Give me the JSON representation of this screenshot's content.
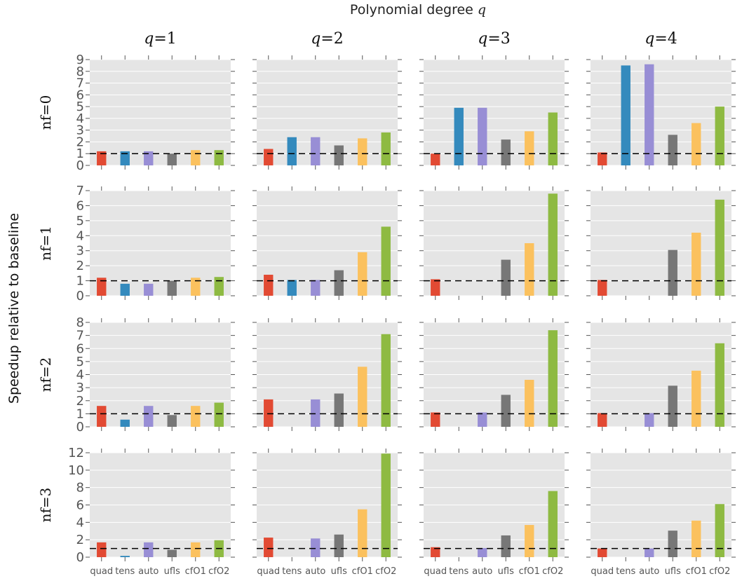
{
  "figure": {
    "suptitle_prefix": "Polynomial degree ",
    "suptitle_var": "q",
    "ylabel": "Speedup relative to baseline"
  },
  "colors": {
    "quad": "#e24a33",
    "tens": "#348abd",
    "auto": "#988ed5",
    "ufls": "#777777",
    "cfO1": "#fbc15e",
    "cfO2": "#8eba42",
    "panel_bg": "#e5e5e5",
    "grid": "#ffffff",
    "baseline": "#000000"
  },
  "chart_data": {
    "type": "bar",
    "categories": [
      "quad",
      "tens",
      "auto",
      "ufls",
      "cfO1",
      "cfO2"
    ],
    "baseline": 1,
    "columns": [
      {
        "var": "q",
        "value": "1"
      },
      {
        "var": "q",
        "value": "2"
      },
      {
        "var": "q",
        "value": "3"
      },
      {
        "var": "q",
        "value": "4"
      }
    ],
    "rows": [
      {
        "var": "nf",
        "value": "0",
        "ylim": [
          0,
          9
        ],
        "yticks": [
          0,
          1,
          2,
          3,
          4,
          5,
          6,
          7,
          8,
          9
        ]
      },
      {
        "var": "nf",
        "value": "1",
        "ylim": [
          0,
          7
        ],
        "yticks": [
          0,
          1,
          2,
          3,
          4,
          5,
          6,
          7
        ]
      },
      {
        "var": "nf",
        "value": "2",
        "ylim": [
          0,
          8
        ],
        "yticks": [
          0,
          1,
          2,
          3,
          4,
          5,
          6,
          7,
          8
        ]
      },
      {
        "var": "nf",
        "value": "3",
        "ylim": [
          0,
          12
        ],
        "yticks": [
          0,
          2,
          4,
          6,
          8,
          10,
          12
        ]
      }
    ],
    "values": [
      [
        [
          1.2,
          1.2,
          1.2,
          1.0,
          1.3,
          1.3
        ],
        [
          1.4,
          2.4,
          2.4,
          1.7,
          2.3,
          2.8
        ],
        [
          1.0,
          4.9,
          4.9,
          2.2,
          2.9,
          4.5
        ],
        [
          1.1,
          8.5,
          8.6,
          2.6,
          3.6,
          5.0
        ]
      ],
      [
        [
          1.2,
          0.8,
          0.8,
          1.0,
          1.2,
          1.25
        ],
        [
          1.4,
          1.05,
          1.05,
          1.7,
          2.9,
          4.6
        ],
        [
          1.1,
          null,
          null,
          2.4,
          3.5,
          6.8
        ],
        [
          1.05,
          null,
          null,
          3.05,
          4.2,
          6.4
        ]
      ],
      [
        [
          1.6,
          0.55,
          1.6,
          0.9,
          1.6,
          1.85
        ],
        [
          2.1,
          null,
          2.1,
          2.55,
          4.6,
          7.1
        ],
        [
          1.1,
          null,
          1.1,
          2.45,
          3.6,
          7.4
        ],
        [
          1.05,
          null,
          1.05,
          3.15,
          4.3,
          6.4
        ]
      ],
      [
        [
          1.7,
          0.15,
          1.7,
          0.85,
          1.7,
          1.95
        ],
        [
          2.25,
          null,
          2.15,
          2.6,
          5.5,
          11.9
        ],
        [
          1.15,
          null,
          1.05,
          2.5,
          3.7,
          7.6
        ],
        [
          1.0,
          null,
          1.0,
          3.05,
          4.2,
          6.1
        ]
      ]
    ],
    "grid": true,
    "legend": "none"
  }
}
